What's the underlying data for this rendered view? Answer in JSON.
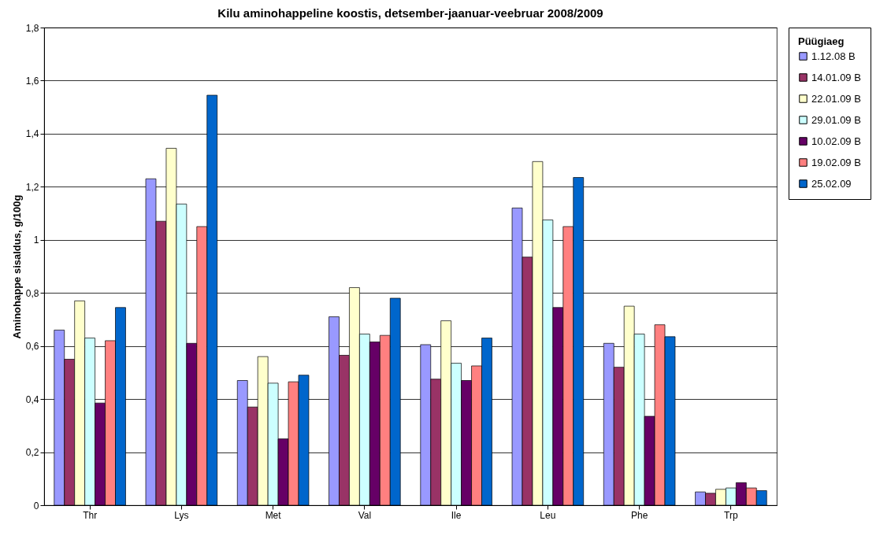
{
  "chart_data": {
    "type": "bar",
    "title": "Kilu aminohappeline koostis, detsember-jaanuar-veebruar 2008/2009",
    "ylabel": "Aminohappe sisaldus, g/100g",
    "legend_title": "Püügiaeg",
    "legend": "right",
    "categories": [
      "Thr",
      "Lys",
      "Met",
      "Val",
      "Ile",
      "Leu",
      "Phe",
      "Trp"
    ],
    "ylim": [
      0,
      1.8
    ],
    "yticks": [
      0,
      {
        "value": 0.2,
        "label": "0,2"
      },
      {
        "value": 0.4,
        "label": "0,4"
      },
      {
        "value": 0.6,
        "label": "0,6"
      },
      {
        "value": 0.8,
        "label": "0,8"
      },
      1,
      {
        "value": 1.2,
        "label": "1,2"
      },
      {
        "value": 1.4,
        "label": "1,4"
      },
      {
        "value": 1.6,
        "label": "1,6"
      },
      {
        "value": 1.8,
        "label": "1,8"
      }
    ],
    "grid": "y",
    "series": [
      {
        "name": "1.12.08 B",
        "color": "#9999ff",
        "values": [
          0.66,
          1.23,
          0.47,
          0.71,
          0.605,
          1.12,
          0.61,
          0.05
        ]
      },
      {
        "name": "14.01.09 B",
        "color": "#993366",
        "values": [
          0.55,
          1.07,
          0.37,
          0.565,
          0.475,
          0.935,
          0.52,
          0.045
        ]
      },
      {
        "name": "22.01.09 B",
        "color": "#ffffcc",
        "values": [
          0.77,
          1.345,
          0.56,
          0.82,
          0.695,
          1.295,
          0.75,
          0.06
        ]
      },
      {
        "name": "29.01.09 B",
        "color": "#ccffff",
        "values": [
          0.63,
          1.135,
          0.46,
          0.645,
          0.535,
          1.075,
          0.645,
          0.065
        ]
      },
      {
        "name": "10.02.09 B",
        "color": "#660066",
        "values": [
          0.385,
          0.61,
          0.25,
          0.615,
          0.47,
          0.745,
          0.335,
          0.085
        ]
      },
      {
        "name": "19.02.09 B",
        "color": "#ff8080",
        "values": [
          0.62,
          1.05,
          0.465,
          0.64,
          0.525,
          1.05,
          0.68,
          0.065
        ]
      },
      {
        "name": "25.02.09",
        "color": "#0066cc",
        "values": [
          0.745,
          1.545,
          0.49,
          0.78,
          0.63,
          1.235,
          0.635,
          0.055
        ]
      }
    ]
  }
}
